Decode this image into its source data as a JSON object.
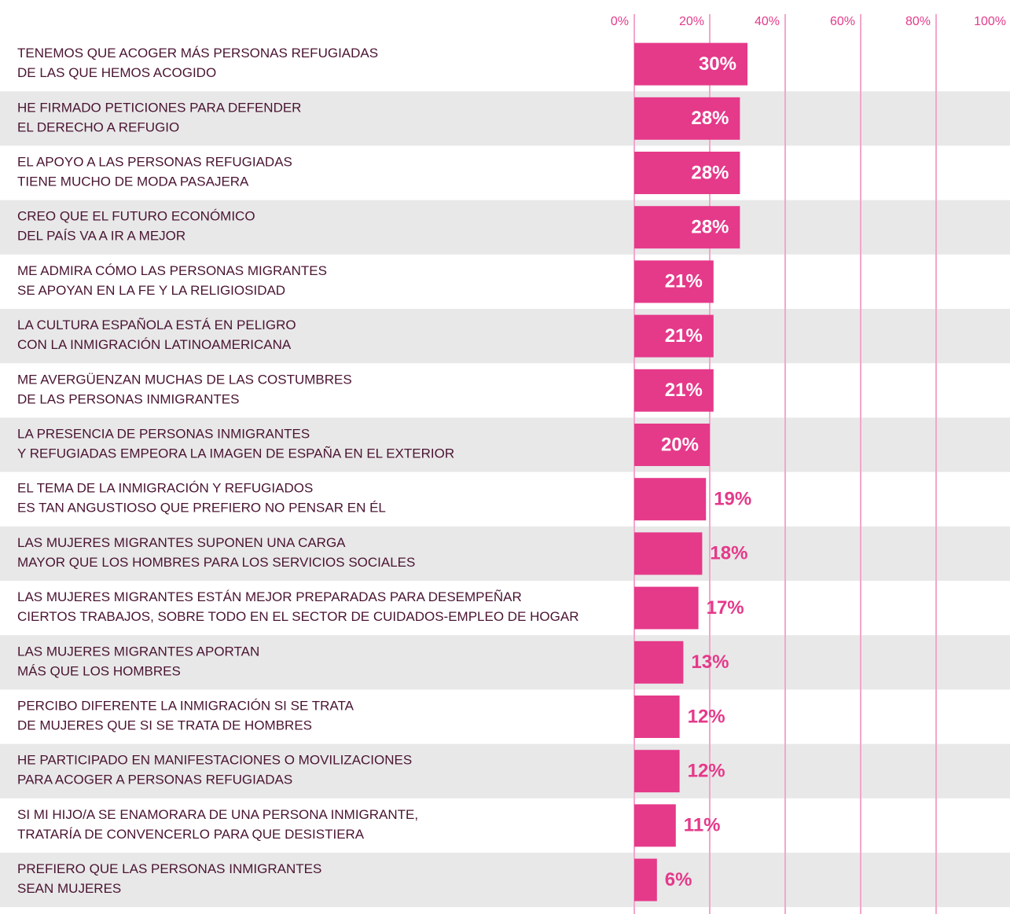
{
  "chart_data": {
    "type": "bar",
    "orientation": "horizontal",
    "color": "#e5398a",
    "categories": [
      "TENEMOS QUE ACOGER MÁS PERSONAS REFUGIADAS\nDE LAS QUE HEMOS ACOGIDO",
      "HE FIRMADO PETICIONES PARA DEFENDER\nEL DERECHO A REFUGIO",
      "EL APOYO A LAS PERSONAS REFUGIADAS\nTIENE MUCHO DE MODA PASAJERA",
      "CREO QUE EL FUTURO ECONÓMICO\nDEL PAÍS VA A IR A MEJOR",
      "ME ADMIRA CÓMO LAS PERSONAS MIGRANTES\nSE APOYAN EN LA FE Y LA RELIGIOSIDAD",
      "LA CULTURA ESPAÑOLA ESTÁ EN PELIGRO\nCON LA INMIGRACIÓN LATINOAMERICANA",
      "ME AVERGÜENZAN MUCHAS DE LAS COSTUMBRES\nDE LAS PERSONAS INMIGRANTES",
      "LA PRESENCIA DE PERSONAS INMIGRANTES\nY REFUGIADAS EMPEORA LA IMAGEN DE ESPAÑA EN EL EXTERIOR",
      "EL TEMA DE LA INMIGRACIÓN Y REFUGIADOS\nES TAN ANGUSTIOSO QUE PREFIERO NO PENSAR EN ÉL",
      "LAS MUJERES MIGRANTES SUPONEN UNA CARGA\nMAYOR QUE LOS HOMBRES PARA LOS SERVICIOS SOCIALES",
      "LAS MUJERES MIGRANTES ESTÁN MEJOR PREPARADAS PARA DESEMPEÑAR\nCIERTOS TRABAJOS, SOBRE TODO EN EL SECTOR DE CUIDADOS-EMPLEO DE HOGAR",
      "LAS MUJERES MIGRANTES APORTAN\nMÁS QUE LOS HOMBRES",
      "PERCIBO DIFERENTE LA INMIGRACIÓN SI SE TRATA\nDE MUJERES QUE SI SE TRATA DE HOMBRES",
      "HE PARTICIPADO EN MANIFESTACIONES O MOVILIZACIONES\nPARA ACOGER A PERSONAS REFUGIADAS",
      "SI MI HIJO/A SE ENAMORARA DE UNA PERSONA INMIGRANTE,\nTRATARÍA DE CONVENCERLO PARA QUE DESISTIERA",
      "PREFIERO QUE LAS PERSONAS INMIGRANTES\nSEAN MUJERES"
    ],
    "values": [
      30,
      28,
      28,
      28,
      21,
      21,
      21,
      20,
      19,
      18,
      17,
      13,
      12,
      12,
      11,
      6
    ],
    "value_labels": [
      "30%",
      "28%",
      "28%",
      "28%",
      "21%",
      "21%",
      "21%",
      "20%",
      "19%",
      "18%",
      "17%",
      "13%",
      "12%",
      "12%",
      "11%",
      "6%"
    ],
    "xlim": [
      0,
      100
    ],
    "xticks": [
      {
        "value": 0,
        "label": "0%"
      },
      {
        "value": 20,
        "label": "20%"
      },
      {
        "value": 40,
        "label": "40%"
      },
      {
        "value": 60,
        "label": "60%"
      },
      {
        "value": 80,
        "label": "80%"
      },
      {
        "value": 100,
        "label": "100%"
      }
    ],
    "grid": true
  }
}
